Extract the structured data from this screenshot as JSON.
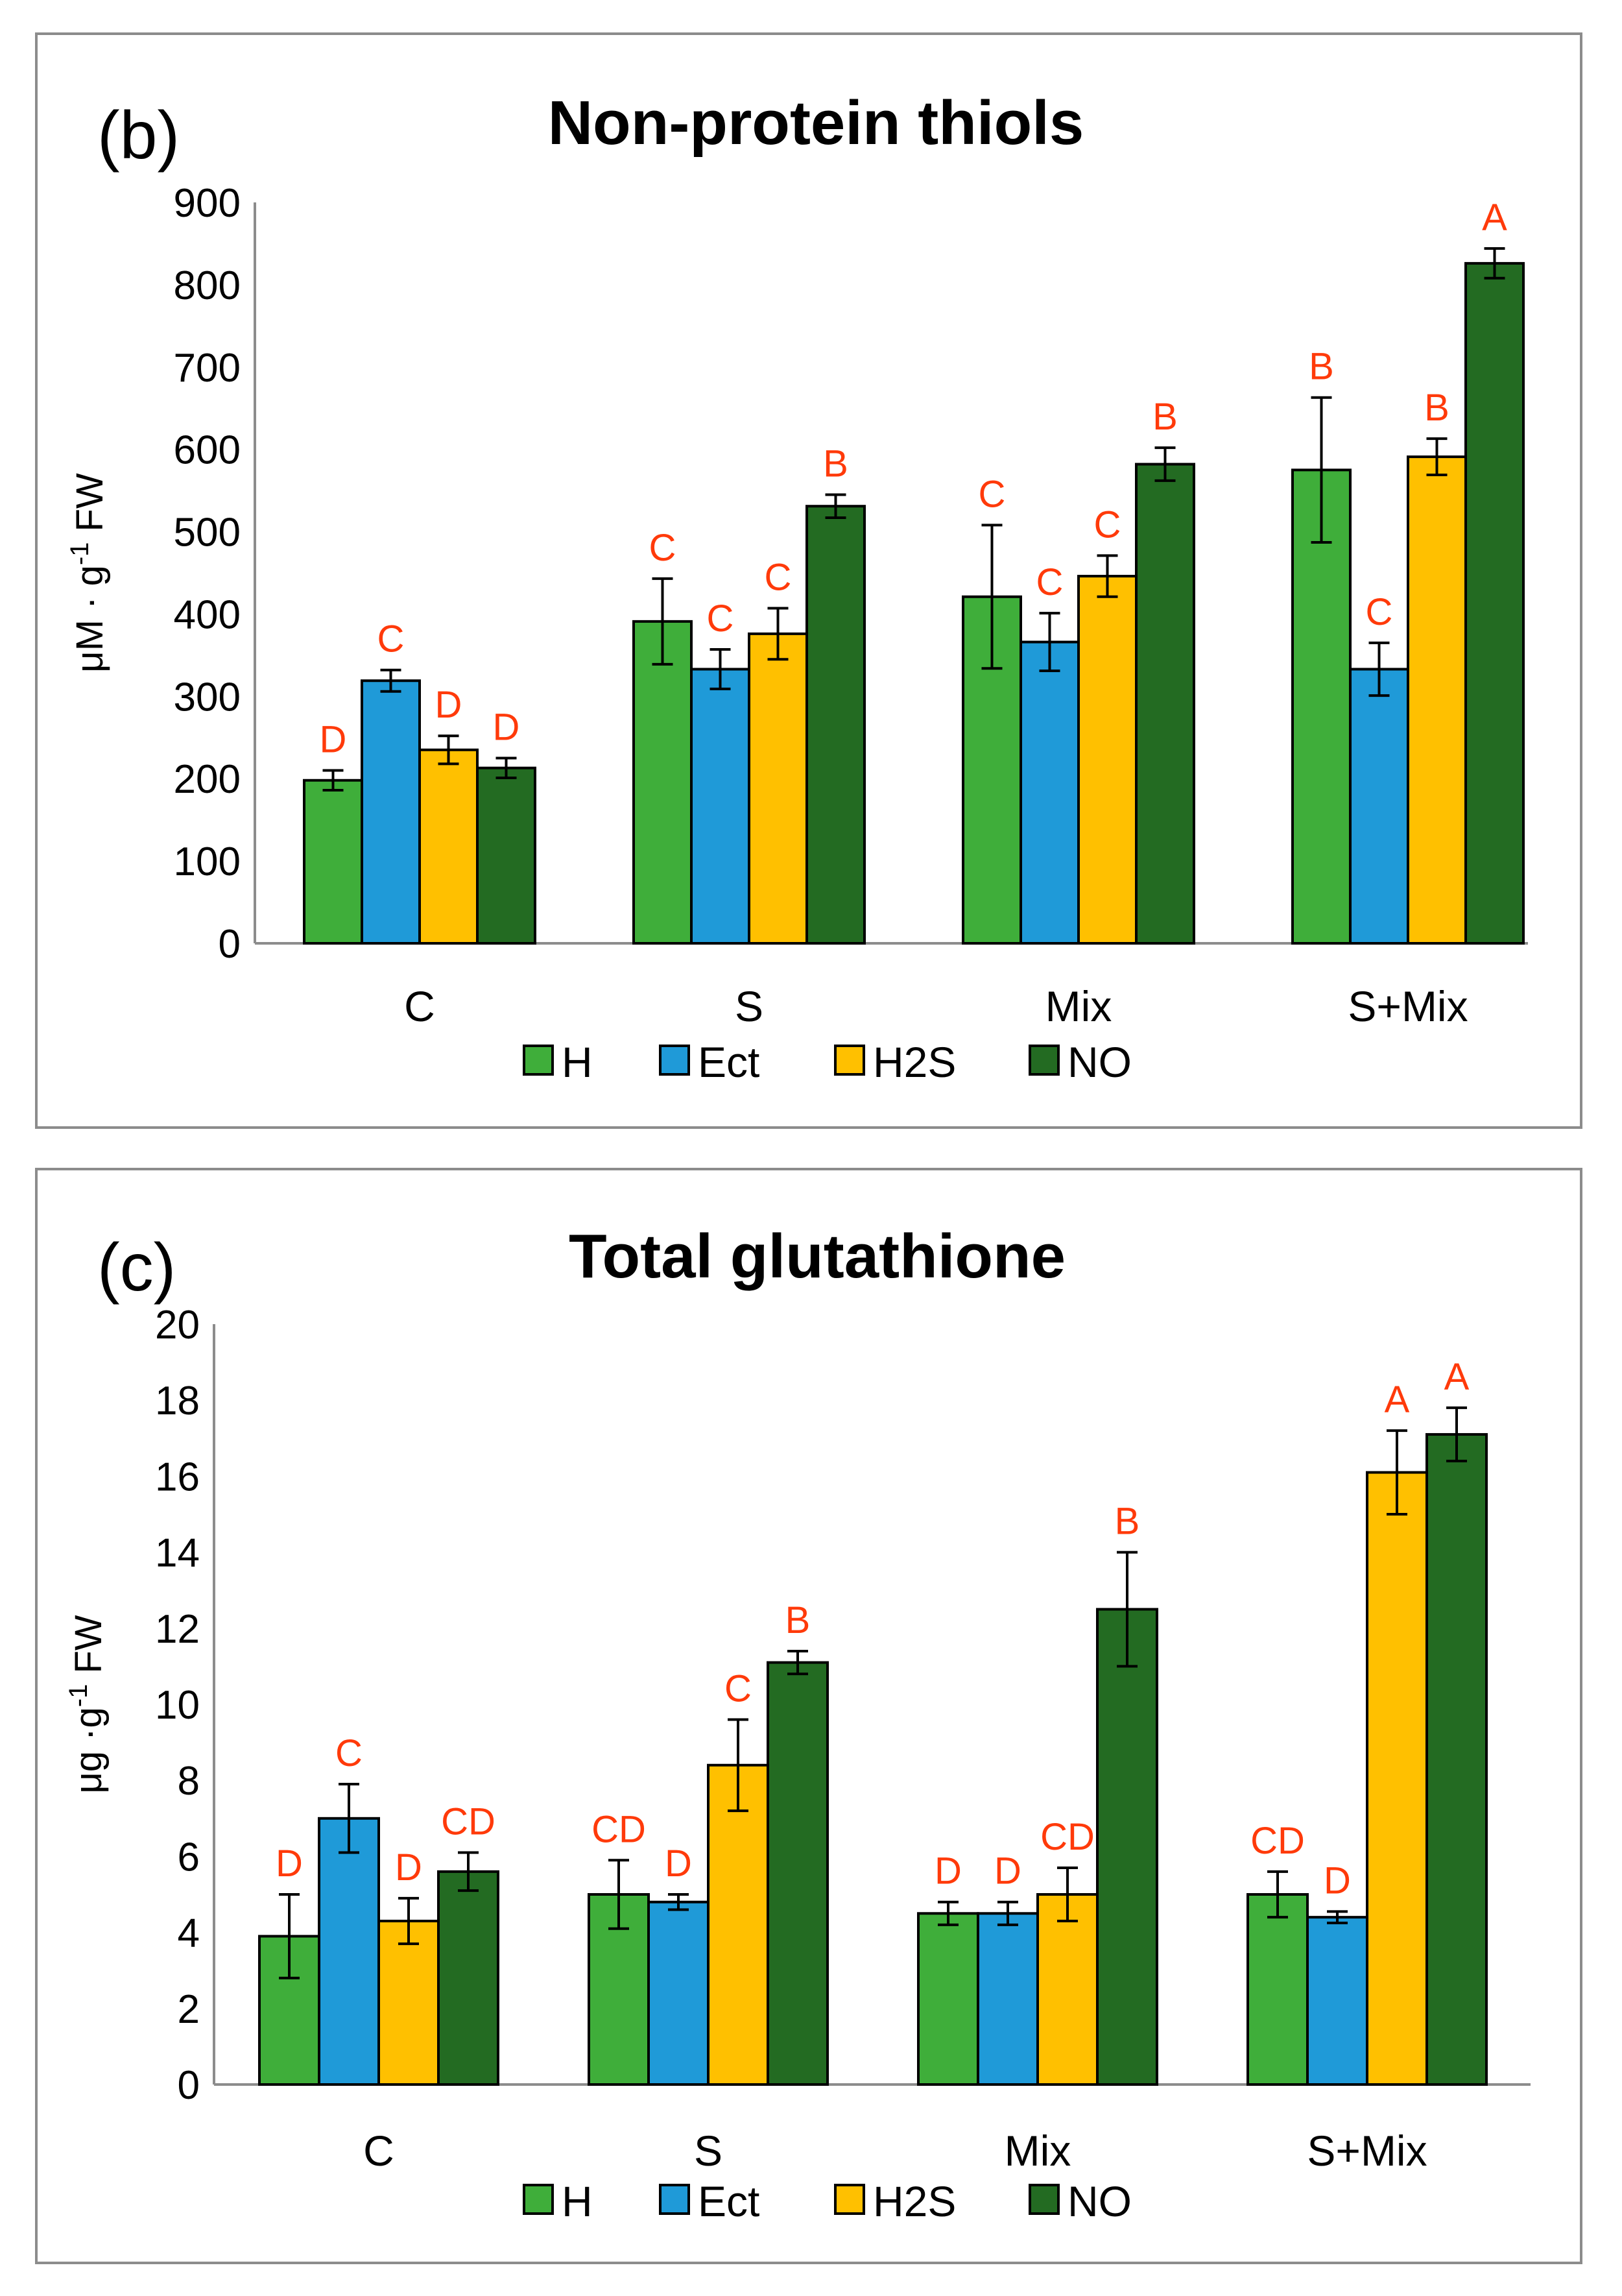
{
  "chart_data": [
    {
      "type": "bar",
      "panel_label": "(b)",
      "title": "Non-protein thiols",
      "ylabel": "μM · g",
      "ylabel_sup": "-1",
      "ylabel_suffix": " FW",
      "xlabel": "",
      "ylim": [
        0,
        900
      ],
      "yticks": [
        0,
        100,
        200,
        300,
        400,
        500,
        600,
        700,
        800,
        900
      ],
      "categories": [
        "C",
        "S",
        "Mix",
        "S+Mix"
      ],
      "series": [
        {
          "name": "H",
          "color": "#3fae3a",
          "values": [
            198,
            391,
            421,
            575
          ],
          "errors": [
            12,
            52,
            87,
            88
          ],
          "letters": [
            "D",
            "C",
            "C",
            "B"
          ]
        },
        {
          "name": "Ect",
          "color": "#1f9ad8",
          "values": [
            319,
            333,
            366,
            333
          ],
          "errors": [
            13,
            24,
            35,
            32
          ],
          "letters": [
            "C",
            "C",
            "C",
            "C"
          ]
        },
        {
          "name": "H2S",
          "color": "#ffc000",
          "values": [
            235,
            376,
            446,
            591
          ],
          "errors": [
            17,
            31,
            25,
            22
          ],
          "letters": [
            "D",
            "C",
            "C",
            "B"
          ]
        },
        {
          "name": "NO",
          "color": "#236b22",
          "values": [
            213,
            531,
            582,
            826
          ],
          "errors": [
            12,
            14,
            20,
            18
          ],
          "letters": [
            "D",
            "B",
            "B",
            "A"
          ]
        }
      ],
      "legend": "bottom",
      "grid": false
    },
    {
      "type": "bar",
      "panel_label": "(c)",
      "title": "Total glutathione",
      "ylabel": "μg ·g",
      "ylabel_sup": "-1",
      "ylabel_suffix": " FW",
      "xlabel": "",
      "ylim": [
        0,
        20
      ],
      "yticks": [
        0,
        2,
        4,
        6,
        8,
        10,
        12,
        14,
        16,
        18,
        20
      ],
      "categories": [
        "C",
        "S",
        "Mix",
        "S+Mix"
      ],
      "series": [
        {
          "name": "H",
          "color": "#3fae3a",
          "values": [
            3.9,
            5.0,
            4.5,
            5.0
          ],
          "errors": [
            1.1,
            0.9,
            0.3,
            0.6
          ],
          "letters": [
            "D",
            "CD",
            "D",
            "CD"
          ]
        },
        {
          "name": "Ect",
          "color": "#1f9ad8",
          "values": [
            7.0,
            4.8,
            4.5,
            4.4
          ],
          "errors": [
            0.9,
            0.2,
            0.3,
            0.15
          ],
          "letters": [
            "C",
            "D",
            "D",
            "D"
          ]
        },
        {
          "name": "H2S",
          "color": "#ffc000",
          "values": [
            4.3,
            8.4,
            5.0,
            16.1
          ],
          "errors": [
            0.6,
            1.2,
            0.7,
            1.1
          ],
          "letters": [
            "D",
            "C",
            "CD",
            "A"
          ]
        },
        {
          "name": "NO",
          "color": "#236b22",
          "values": [
            5.6,
            11.1,
            12.5,
            17.1
          ],
          "errors": [
            0.5,
            0.3,
            1.5,
            0.7
          ],
          "letters": [
            "CD",
            "B",
            "B",
            "A"
          ]
        }
      ],
      "legend": "bottom",
      "grid": false
    }
  ]
}
